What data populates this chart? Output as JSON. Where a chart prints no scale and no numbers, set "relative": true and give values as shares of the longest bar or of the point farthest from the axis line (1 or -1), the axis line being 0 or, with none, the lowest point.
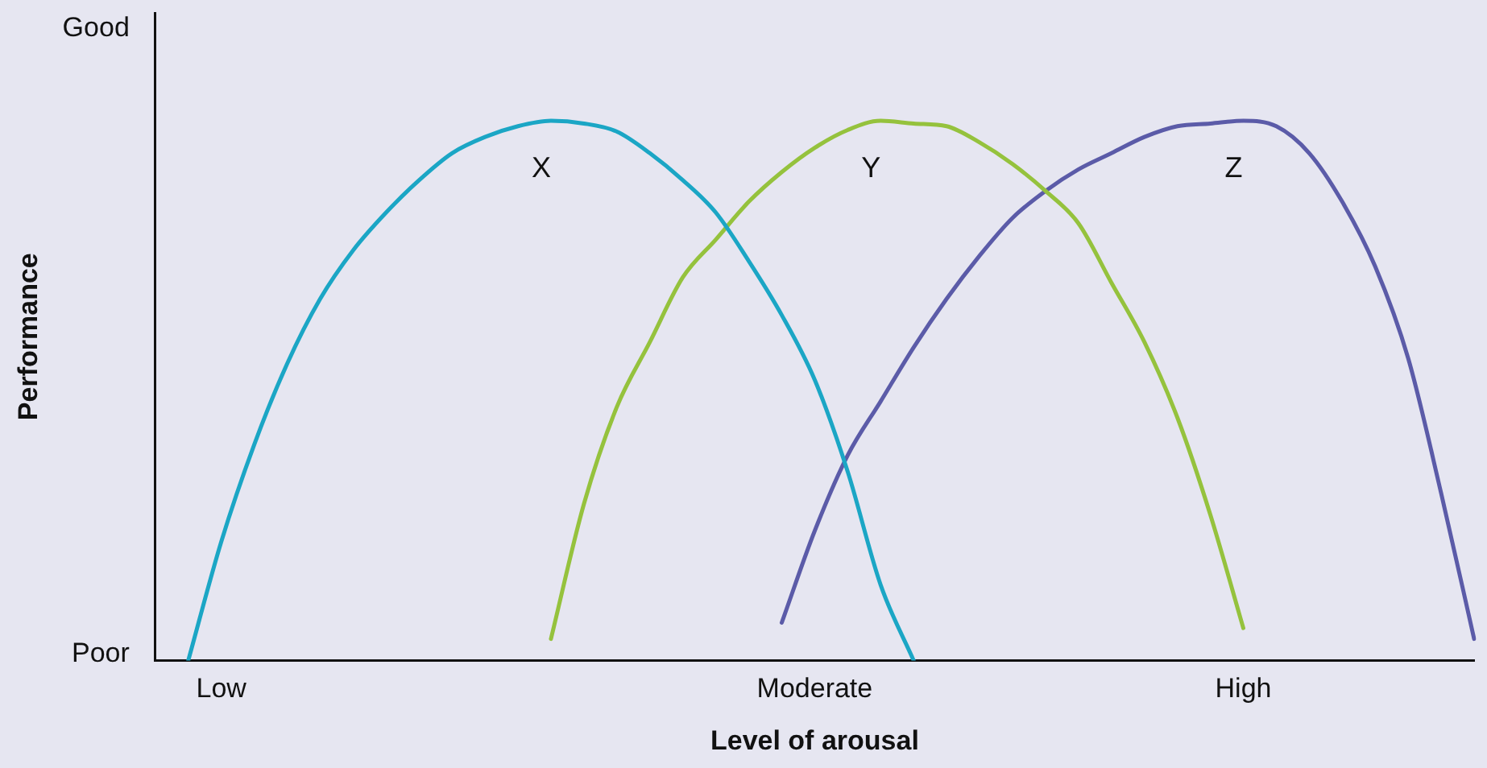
{
  "chart_data": {
    "type": "line",
    "xlabel": "Level of arousal",
    "ylabel": "Performance",
    "relative": true,
    "annotations": [
      "Good",
      "Poor"
    ],
    "categories": [
      null,
      null,
      "Low",
      null,
      null,
      null,
      null,
      null,
      null,
      null,
      null,
      null,
      null,
      null,
      null,
      null,
      null,
      null,
      null,
      null,
      "Moderate",
      null,
      null,
      null,
      null,
      null,
      null,
      null,
      null,
      null,
      null,
      null,
      null,
      "High",
      null,
      null,
      null,
      null,
      null,
      null,
      null
    ],
    "grid": false,
    "legend": false,
    "marker": "none",
    "line_style": "solid",
    "series": [
      {
        "name": "X",
        "color": "#1ba6c5",
        "values": [
          null,
          0,
          0.22,
          0.4,
          0.55,
          0.67,
          0.76,
          0.83,
          0.89,
          0.94,
          0.97,
          0.99,
          1,
          0.995,
          0.98,
          0.94,
          0.89,
          0.83,
          0.74,
          0.64,
          0.52,
          0.35,
          0.14,
          0,
          null,
          null,
          null,
          null,
          null,
          null,
          null,
          null,
          null,
          null,
          null,
          null,
          null,
          null,
          null,
          null,
          null
        ]
      },
      {
        "name": "Y",
        "color": "#95c23d",
        "values": [
          null,
          null,
          null,
          null,
          null,
          null,
          null,
          null,
          null,
          null,
          null,
          null,
          0.04,
          0.29,
          0.47,
          0.59,
          0.71,
          0.78,
          0.85,
          0.905,
          0.95,
          0.983,
          1,
          0.995,
          0.99,
          0.96,
          0.92,
          0.87,
          0.81,
          0.7,
          0.59,
          0.45,
          0.27,
          0.06,
          null,
          null,
          null,
          null,
          null,
          null,
          null
        ]
      },
      {
        "name": "Z",
        "color": "#5b5ba8",
        "values": [
          null,
          null,
          null,
          null,
          null,
          null,
          null,
          null,
          null,
          null,
          null,
          null,
          null,
          null,
          null,
          null,
          null,
          null,
          null,
          0.07,
          0.24,
          0.38,
          0.48,
          0.58,
          0.67,
          0.75,
          0.82,
          0.87,
          0.91,
          0.94,
          0.97,
          0.99,
          0.995,
          1,
          0.99,
          0.94,
          0.85,
          0.73,
          0.56,
          0.31,
          0.04
        ]
      }
    ]
  }
}
